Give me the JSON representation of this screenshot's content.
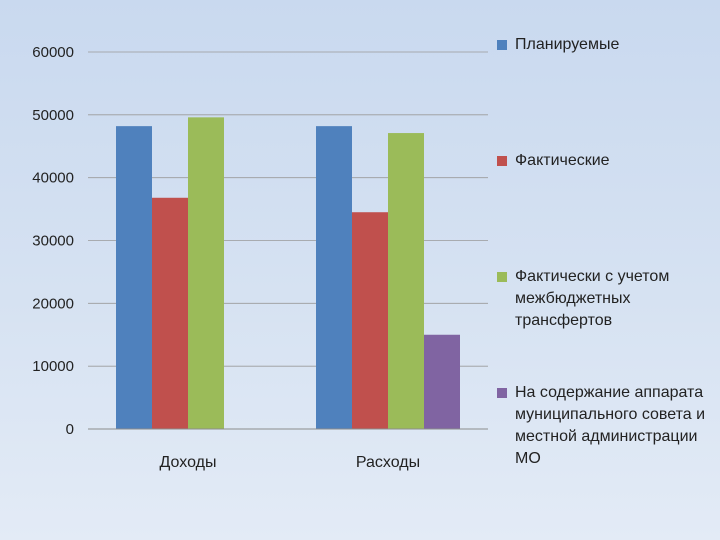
{
  "chart_data": {
    "type": "bar",
    "categories": [
      "Доходы",
      "Расходы"
    ],
    "series": [
      {
        "name": "Планируемые",
        "color": "#4f81bd",
        "values": [
          48200,
          48200
        ]
      },
      {
        "name": "Фактические",
        "color": "#c0504d",
        "values": [
          36800,
          34500
        ]
      },
      {
        "name": "Фактически с учетом межбюджетных трансфертов",
        "color": "#9bbb59",
        "values": [
          49600,
          47100
        ]
      },
      {
        "name": "На содержание аппарата муниципального совета и местной администрации МО",
        "color": "#8064a2",
        "values": [
          null,
          15000
        ]
      }
    ],
    "yticks": [
      "0",
      "10000",
      "20000",
      "30000",
      "40000",
      "50000",
      "60000"
    ],
    "ylim": [
      0,
      60000
    ],
    "grid": true,
    "legend_position": "right"
  }
}
